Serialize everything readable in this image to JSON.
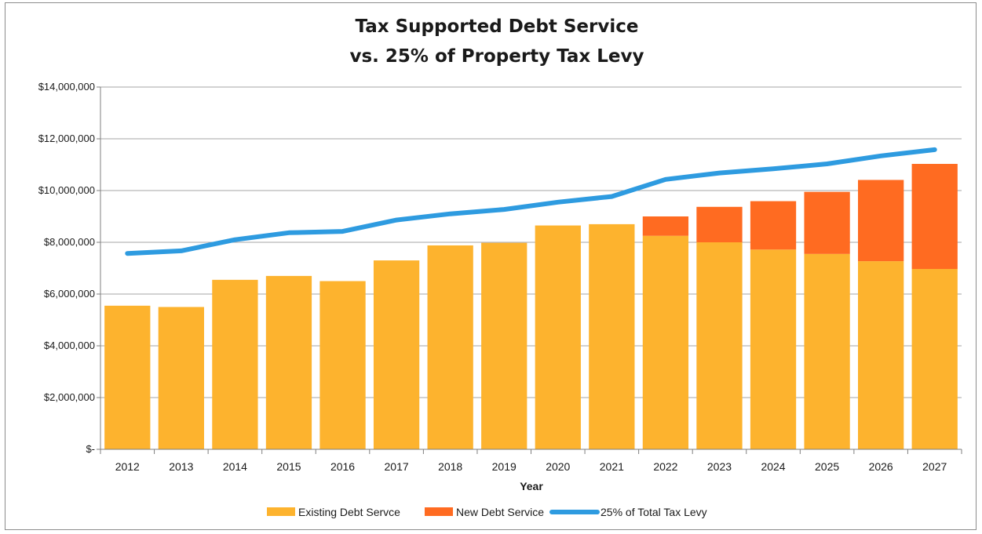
{
  "chart_data": {
    "type": "bar",
    "stacked": true,
    "title": "Tax Supported Debt Service",
    "subtitle": "vs. 25% of Property Tax Levy",
    "xlabel": "Year",
    "ylabel": "",
    "ylim": [
      0,
      14000000
    ],
    "yticks": [
      0,
      2000000,
      4000000,
      6000000,
      8000000,
      10000000,
      12000000,
      14000000
    ],
    "ytick_labels": [
      "$-",
      "$2,000,000",
      "$4,000,000",
      "$6,000,000",
      "$8,000,000",
      "$10,000,000",
      "$12,000,000",
      "$14,000,000"
    ],
    "grid": true,
    "legend": "bottom",
    "categories": [
      "2012",
      "2013",
      "2014",
      "2015",
      "2016",
      "2017",
      "2018",
      "2019",
      "2020",
      "2021",
      "2022",
      "2023",
      "2024",
      "2025",
      "2026",
      "2027"
    ],
    "series": [
      {
        "name": "Existing Debt Servce",
        "kind": "bar",
        "color": "#FDB32E",
        "values": [
          5550000,
          5500000,
          6550000,
          6700000,
          6500000,
          7300000,
          7880000,
          7980000,
          8650000,
          8700000,
          8250000,
          8000000,
          7720000,
          7550000,
          7270000,
          6970000
        ]
      },
      {
        "name": "New Debt Service",
        "kind": "bar",
        "color": "#FF6B21",
        "values": [
          0,
          0,
          0,
          0,
          0,
          0,
          0,
          0,
          0,
          0,
          750000,
          1370000,
          1870000,
          2400000,
          3140000,
          4060000
        ]
      },
      {
        "name": "25% of Total Tax Levy",
        "kind": "line",
        "color": "#2E9BE0",
        "values": [
          7570000,
          7670000,
          8100000,
          8370000,
          8420000,
          8860000,
          9100000,
          9270000,
          9550000,
          9770000,
          10430000,
          10680000,
          10840000,
          11030000,
          11340000,
          11580000
        ]
      }
    ]
  }
}
